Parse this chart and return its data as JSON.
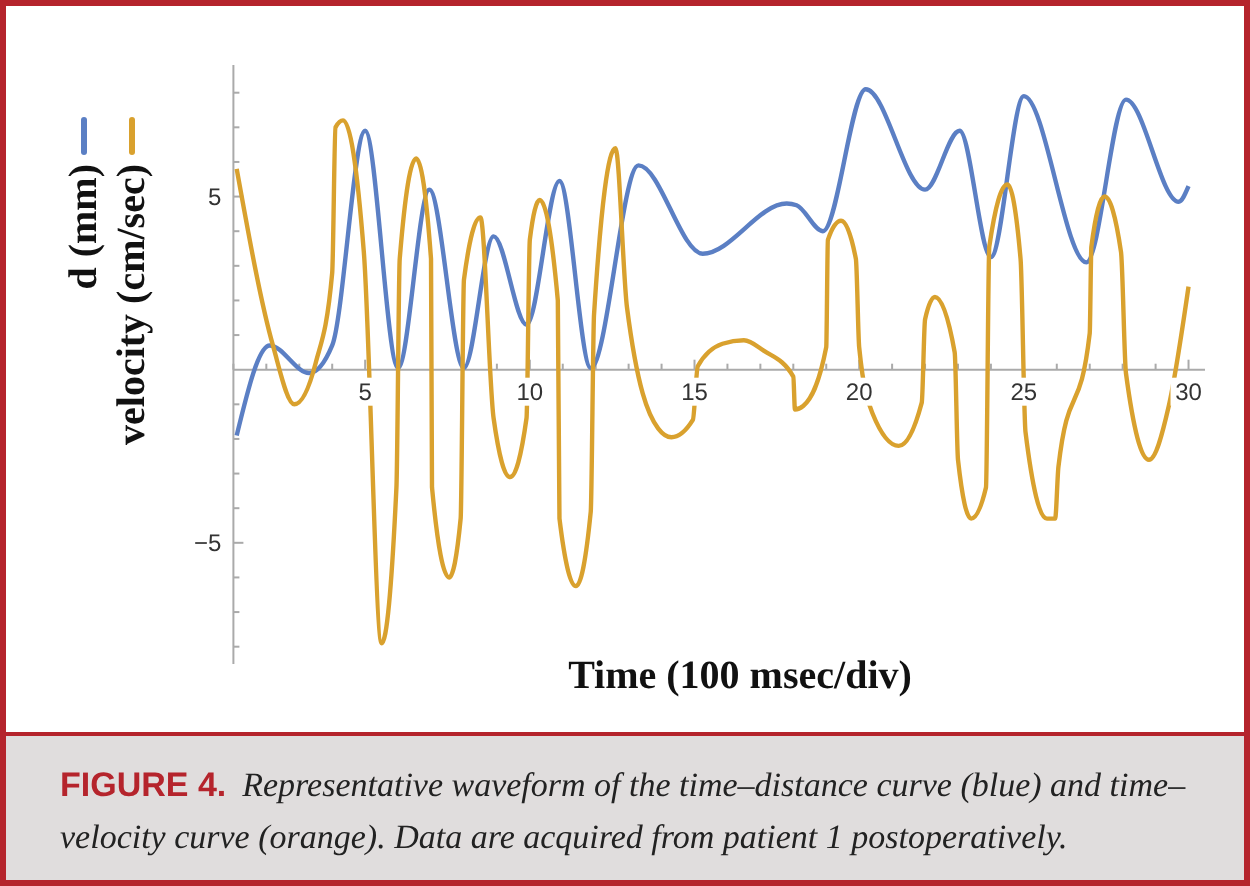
{
  "chart_data": {
    "type": "line",
    "xlabel": "Time (100 msec/div)",
    "xlim": [
      1,
      30.5
    ],
    "ylim": [
      -8.5,
      8.8
    ],
    "xticks": [
      {
        "value": 1,
        "label": null
      },
      {
        "value": 2,
        "label": null
      },
      {
        "value": 3,
        "label": null
      },
      {
        "value": 4,
        "label": null
      },
      5,
      {
        "value": 6,
        "label": null
      },
      {
        "value": 7,
        "label": null
      },
      {
        "value": 8,
        "label": null
      },
      {
        "value": 9,
        "label": null
      },
      10,
      {
        "value": 11,
        "label": null
      },
      {
        "value": 12,
        "label": null
      },
      {
        "value": 13,
        "label": null
      },
      {
        "value": 14,
        "label": null
      },
      15,
      {
        "value": 16,
        "label": null
      },
      {
        "value": 17,
        "label": null
      },
      {
        "value": 18,
        "label": null
      },
      {
        "value": 19,
        "label": null
      },
      20,
      {
        "value": 21,
        "label": null
      },
      {
        "value": 22,
        "label": null
      },
      {
        "value": 23,
        "label": null
      },
      {
        "value": 24,
        "label": null
      },
      25,
      {
        "value": 26,
        "label": null
      },
      {
        "value": 27,
        "label": null
      },
      {
        "value": 28,
        "label": null
      },
      {
        "value": 29,
        "label": null
      },
      30
    ],
    "yticks": [
      {
        "value": -8,
        "label": null
      },
      {
        "value": -7,
        "label": null
      },
      {
        "value": -6,
        "label": null
      },
      {
        "value": -5,
        "label": "−5"
      },
      {
        "value": -4,
        "label": null
      },
      {
        "value": -3,
        "label": null
      },
      {
        "value": -2,
        "label": null
      },
      {
        "value": -1,
        "label": null
      },
      {
        "value": 1,
        "label": null
      },
      {
        "value": 2,
        "label": null
      },
      {
        "value": 3,
        "label": null
      },
      {
        "value": 4,
        "label": null
      },
      5,
      {
        "value": 6,
        "label": null
      },
      {
        "value": 7,
        "label": null
      },
      {
        "value": 8,
        "label": null
      }
    ],
    "legend": "left",
    "grid": false,
    "marker": "none",
    "line_style": "solid",
    "series": [
      {
        "name": "d (mm)",
        "color": "#5b7fc4",
        "x": [
          1.1,
          2.1,
          3.3,
          4.0,
          5.0,
          6.0,
          6.95,
          8.0,
          8.9,
          9.9,
          10.9,
          11.85,
          13.3,
          15.25,
          17.8,
          18.1,
          18.9,
          20.2,
          22.0,
          23.05,
          24.0,
          25.0,
          26.9,
          28.1,
          29.7,
          30.0
        ],
        "values": [
          -1.9,
          0.7,
          -0.1,
          0.7,
          6.9,
          0.05,
          5.2,
          0.05,
          3.85,
          1.3,
          5.45,
          0.05,
          5.9,
          3.35,
          4.8,
          4.75,
          4.0,
          8.1,
          5.2,
          6.9,
          3.25,
          7.9,
          3.1,
          7.8,
          4.85,
          5.3
        ]
      },
      {
        "name": "velocity (cm/sec)",
        "color": "#d9a12e",
        "x": [
          1.1,
          2.2,
          2.85,
          3.5,
          4.0,
          4.1,
          4.33,
          4.96,
          5.5,
          5.95,
          6.05,
          6.55,
          7.0,
          7.03,
          7.55,
          7.9,
          8.0,
          8.5,
          8.9,
          9.4,
          9.9,
          10.0,
          10.3,
          10.85,
          10.9,
          11.4,
          11.85,
          11.95,
          12.6,
          12.95,
          13.9,
          14.3,
          14.95,
          15.1,
          15.85,
          16.5,
          17.1,
          18.0,
          18.05,
          18.3,
          19.0,
          19.05,
          19.45,
          19.9,
          20.0,
          20.4,
          21.2,
          21.9,
          22.0,
          22.3,
          22.9,
          23.0,
          23.4,
          23.85,
          23.95,
          24.5,
          24.9,
          25.05,
          25.7,
          25.95,
          26.05,
          27.0,
          27.05,
          27.45,
          27.95,
          28.1,
          28.8,
          29.4,
          30.0
        ],
        "values": [
          5.8,
          0.7,
          -1.0,
          0.2,
          2.8,
          7.0,
          7.2,
          3.4,
          -7.9,
          -3.4,
          3.2,
          6.1,
          3.2,
          -3.4,
          -6.0,
          -4.3,
          2.6,
          4.4,
          -1.4,
          -3.1,
          -1.4,
          3.75,
          4.9,
          2.0,
          -4.3,
          -6.25,
          -4.1,
          1.6,
          6.4,
          1.8,
          -1.7,
          -1.95,
          -1.45,
          0.1,
          0.75,
          0.85,
          0.55,
          -0.2,
          -1.15,
          -1.05,
          0.65,
          3.75,
          4.3,
          3.2,
          0.65,
          -1.25,
          -2.2,
          -0.95,
          1.45,
          2.1,
          0.5,
          -2.6,
          -4.3,
          -3.4,
          3.55,
          5.35,
          3.2,
          -1.8,
          -4.3,
          -4.3,
          -2.8,
          1.05,
          3.55,
          5.0,
          3.4,
          -0.1,
          -2.6,
          -1.05,
          2.4
        ]
      }
    ],
    "annotations": [
      "FIGURE 4.",
      "Representative waveform of the time–distance curve (blue) and time–velocity curve (orange). Data are acquired from patient 1 postoperatively."
    ]
  }
}
